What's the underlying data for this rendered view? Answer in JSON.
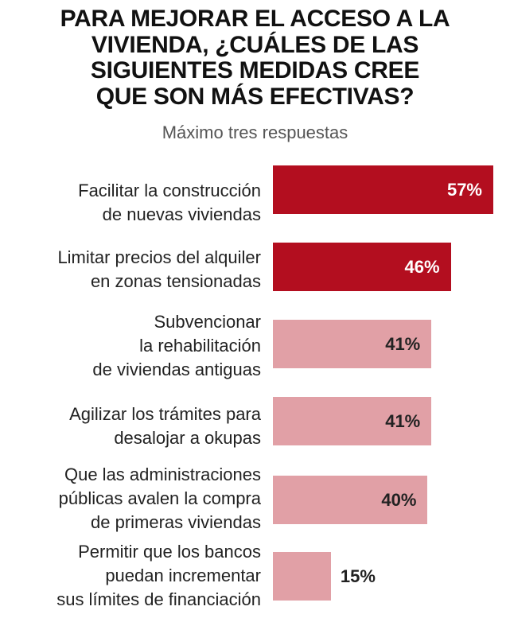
{
  "chart_data": {
    "type": "bar",
    "orientation": "horizontal",
    "title_lines": [
      "PARA MEJORAR EL ACCESO A LA",
      "VIVIENDA, ¿CUÁLES DE LAS",
      "SIGUIENTES MEDIDAS CREE",
      "QUE SON MÁS EFECTIVAS?"
    ],
    "subtitle": "Máximo tres respuestas",
    "categories": [
      [
        "Facilitar la construcción",
        "de nuevas viviendas"
      ],
      [
        "Limitar precios del alquiler",
        "en zonas tensionadas"
      ],
      [
        "Subvencionar",
        "la rehabilitación",
        "de viviendas antiguas"
      ],
      [
        "Agilizar los trámites para",
        "desalojar a okupas"
      ],
      [
        "Que las administraciones",
        "públicas avalen la compra",
        "de primeras viviendas"
      ],
      [
        "Permitir que los bancos",
        "puedan incrementar",
        "sus límites de financiación"
      ]
    ],
    "values": [
      57,
      46,
      41,
      41,
      40,
      15
    ],
    "value_labels": [
      "57%",
      "46%",
      "41%",
      "41%",
      "40%",
      "15%"
    ],
    "unit": "%",
    "highlighted": [
      true,
      true,
      false,
      false,
      false,
      false
    ],
    "colors": {
      "highlight": "#b30e1f",
      "normal": "#e1a0a6",
      "label_on_highlight": "#ffffff",
      "label_normal": "#222222"
    },
    "grid": false
  }
}
